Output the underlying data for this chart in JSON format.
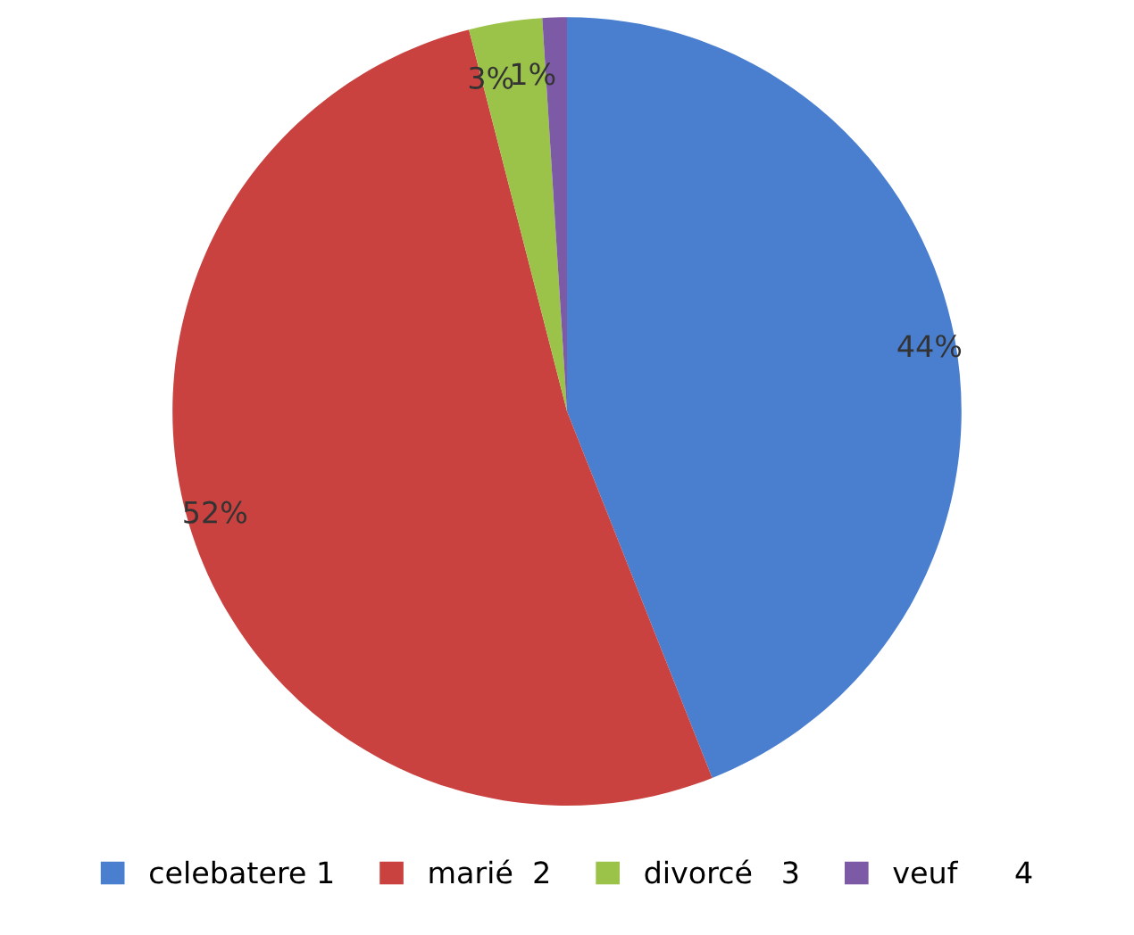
{
  "chart_data": {
    "type": "pie",
    "categories": [
      "celebatere 1",
      "marié  2",
      "divorcé   3",
      "veuf      4"
    ],
    "values": [
      44,
      52,
      3,
      1
    ],
    "colors": [
      "#4a7fcf",
      "#c9423f",
      "#9bc34a",
      "#7d5aa6"
    ],
    "value_labels": [
      "44%",
      "52%",
      "3%",
      "1%"
    ],
    "legend": "bottom"
  }
}
